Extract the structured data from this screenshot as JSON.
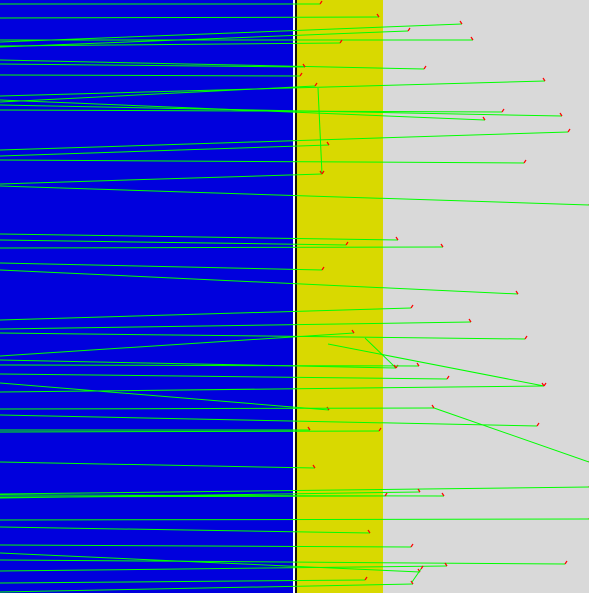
{
  "colors": {
    "background": "#d9d9d9",
    "left_region": "#0000dd",
    "band": "#d9d900",
    "divider_light": "#ffffff",
    "divider_dark": "#111111",
    "trace_line": "#00ff00",
    "trace_tip": "#ff0000"
  }
}
